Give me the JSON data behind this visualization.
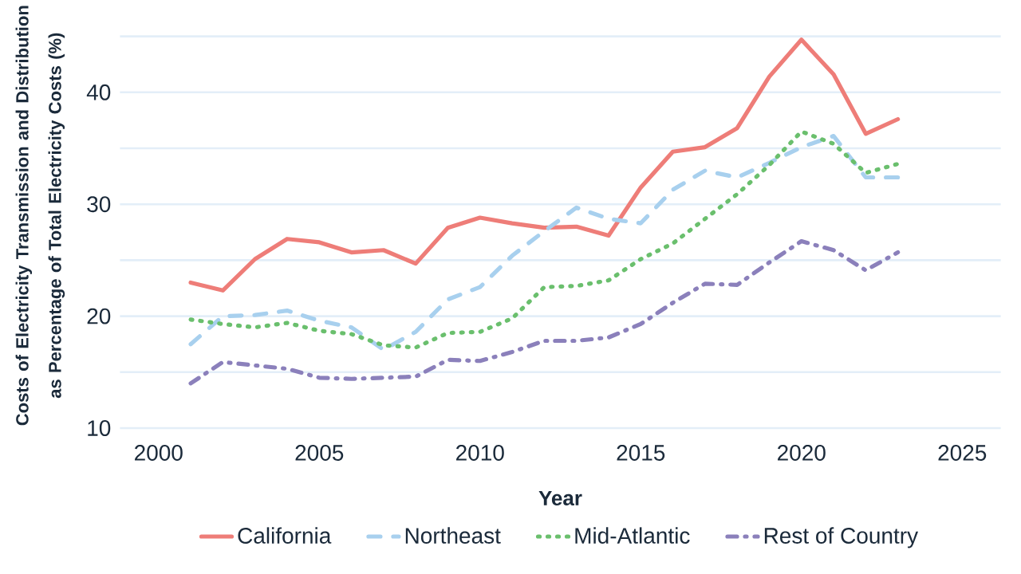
{
  "chart_data": {
    "type": "line",
    "xlabel": "Year",
    "ylabel": "Costs of Electricity Transmission and Distribution as Percentage of Total Electricity Costs (%)",
    "x": [
      2001,
      2002,
      2003,
      2004,
      2005,
      2006,
      2007,
      2008,
      2009,
      2010,
      2011,
      2012,
      2013,
      2014,
      2015,
      2016,
      2017,
      2018,
      2019,
      2020,
      2021,
      2022,
      2023
    ],
    "series": [
      {
        "name": "California",
        "color": "#ee7d78",
        "line_style": "solid",
        "values": [
          23.0,
          22.3,
          25.1,
          26.9,
          26.6,
          25.7,
          25.9,
          24.7,
          27.9,
          28.8,
          28.3,
          27.9,
          28.0,
          27.2,
          31.5,
          34.7,
          35.1,
          36.8,
          41.4,
          44.7,
          41.6,
          36.3,
          37.6
        ]
      },
      {
        "name": "Northeast",
        "color": "#a8d0ee",
        "line_style": "dashed",
        "values": [
          17.5,
          20.0,
          20.1,
          20.5,
          19.6,
          19.0,
          17.0,
          18.6,
          21.5,
          22.6,
          25.4,
          27.6,
          29.7,
          28.7,
          28.3,
          31.3,
          33.0,
          32.4,
          33.7,
          35.1,
          36.1,
          32.4,
          32.4
        ]
      },
      {
        "name": "Mid-Atlantic",
        "color": "#6abf6d",
        "line_style": "dotted",
        "values": [
          19.7,
          19.3,
          19.0,
          19.4,
          18.7,
          18.4,
          17.4,
          17.2,
          18.5,
          18.6,
          19.8,
          22.6,
          22.7,
          23.2,
          25.1,
          26.5,
          28.7,
          30.9,
          33.5,
          36.5,
          35.4,
          32.8,
          33.6
        ]
      },
      {
        "name": "Rest of Country",
        "color": "#8b80bb",
        "line_style": "dashdot",
        "values": [
          14.0,
          15.9,
          15.6,
          15.3,
          14.5,
          14.4,
          14.5,
          14.6,
          16.1,
          16.0,
          16.8,
          17.8,
          17.8,
          18.1,
          19.3,
          21.2,
          22.9,
          22.8,
          24.8,
          26.7,
          25.9,
          24.1,
          25.7
        ]
      }
    ],
    "xlim": [
      1998.8,
      2026.2
    ],
    "xticks": [
      2000,
      2005,
      2010,
      2015,
      2020,
      2025
    ],
    "ylim": [
      10,
      45
    ],
    "yticks": [
      10,
      {
        "value": 15,
        "label": null
      },
      20,
      {
        "value": 25,
        "label": null
      },
      30,
      {
        "value": 35,
        "label": null
      },
      40,
      {
        "value": 45,
        "label": null
      }
    ],
    "grid": "y",
    "legend": "bottom"
  }
}
